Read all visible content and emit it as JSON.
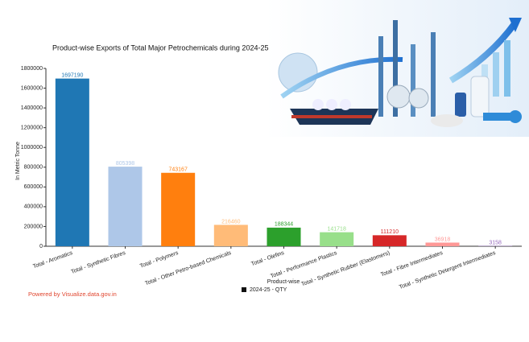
{
  "chart_data": {
    "type": "bar",
    "title": "Product-wise Exports of Total Major Petrochemicals during 2024-25",
    "x_label": "Product-wise",
    "y_label": "In Metric Tonne",
    "categories": [
      "Total - Aromatics",
      "Total - Synthetic Fibres",
      "Total - Polymers",
      "Total - Other Petro-based Chemicals",
      "Total - Olefins",
      "Total - Performance Plastics",
      "Total - Synthetic Rubber (Elastomers)",
      "Total - Fibre Intermediates",
      "Total - Synthetic Detergent Intermediates"
    ],
    "series": [
      {
        "name": "2024-25 - QTY",
        "color": "#111111",
        "colors": [
          "#1f77b4",
          "#aec7e8",
          "#ff7f0e",
          "#ffbb78",
          "#2ca02c",
          "#98df8a",
          "#d62728",
          "#ff9896",
          "#9467bd"
        ],
        "values": [
          1697190,
          805398,
          743167,
          216460,
          188344,
          141718,
          111210,
          36918,
          3158
        ]
      }
    ],
    "ylim": [
      0,
      1800000
    ],
    "yticks": [
      0,
      200000,
      400000,
      600000,
      800000,
      1000000,
      1200000,
      1400000,
      1600000,
      1800000
    ],
    "credit": "Powered by Visualize.data.gov.in"
  }
}
